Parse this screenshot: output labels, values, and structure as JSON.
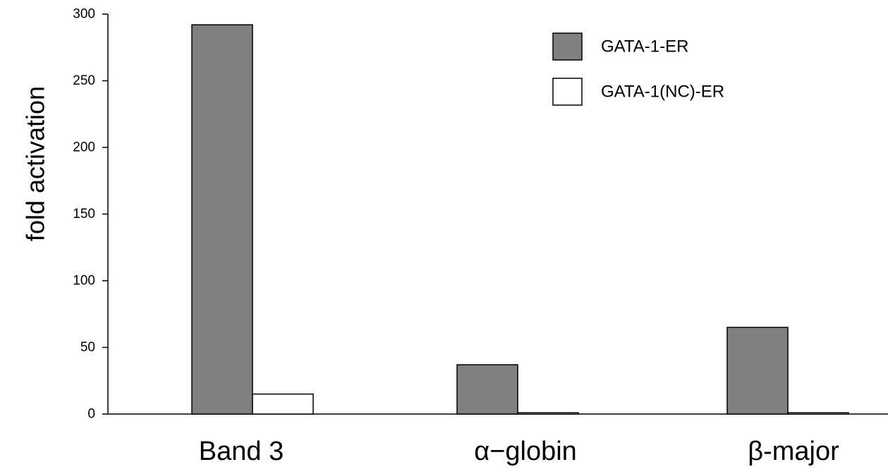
{
  "chart_data": {
    "type": "bar",
    "ylabel": "fold activation",
    "ylim": [
      0,
      300
    ],
    "yticks": [
      "0",
      "50",
      "100",
      "150",
      "200",
      "250",
      "300"
    ],
    "categories": [
      "Band 3",
      "α−globin",
      "β-major"
    ],
    "series": [
      {
        "name": "GATA-1-ER",
        "values": [
          292,
          37,
          65
        ],
        "color": "#808080"
      },
      {
        "name": "GATA-1(NC)-ER",
        "values": [
          15,
          1,
          1
        ],
        "color": "#ffffff"
      }
    ],
    "legend": "top-right",
    "grid": false
  }
}
